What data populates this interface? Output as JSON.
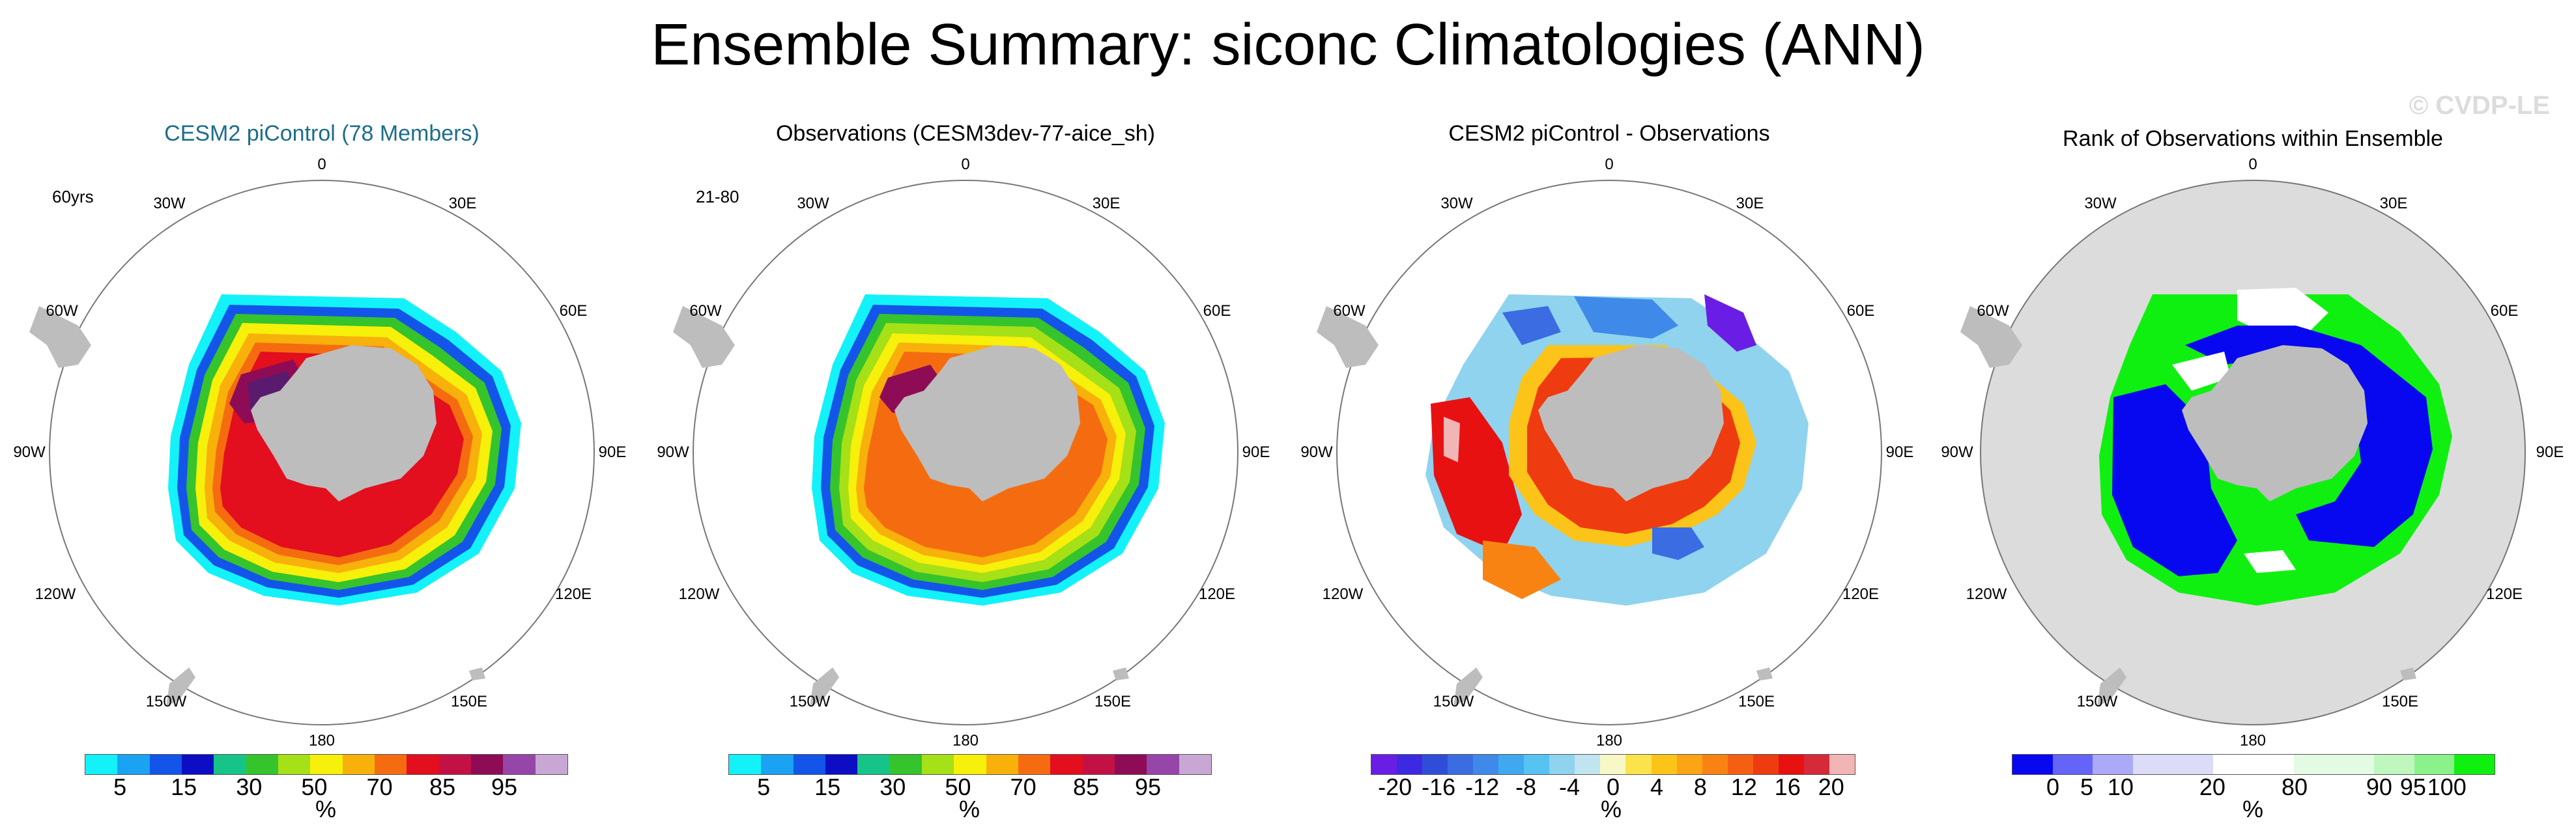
{
  "title": "Ensemble Summary: siconc Climatologies (ANN)",
  "watermark": "© CVDP-LE",
  "lon_labels": [
    "0",
    "30E",
    "60E",
    "90E",
    "120E",
    "150E",
    "180",
    "150W",
    "120W",
    "90W",
    "60W",
    "30W"
  ],
  "panels": [
    {
      "title": "CESM2 piControl (78 Members)",
      "corner": "60yrs",
      "unit": "%",
      "colors": [
        "#13f2f8",
        "#1aa3f2",
        "#1455e9",
        "#0d0dc4",
        "#16c48a",
        "#35c42c",
        "#a6e017",
        "#f7f00a",
        "#f8b00b",
        "#f56c10",
        "#e30e1e",
        "#c21245",
        "#8e0c55",
        "#9646a9",
        "#c8a7d4"
      ],
      "ticks": [
        "5",
        "15",
        "30",
        "50",
        "70",
        "85",
        "95"
      ]
    },
    {
      "title": "Observations (CESM3dev-77-aice_sh)",
      "corner": "21-80",
      "unit": "%",
      "colors": [
        "#13f2f8",
        "#1aa3f2",
        "#1455e9",
        "#0d0dc4",
        "#16c48a",
        "#35c42c",
        "#a6e017",
        "#f7f00a",
        "#f8b00b",
        "#f56c10",
        "#e30e1e",
        "#c21245",
        "#8e0c55",
        "#9646a9",
        "#c8a7d4"
      ],
      "ticks": [
        "5",
        "15",
        "30",
        "50",
        "70",
        "85",
        "95"
      ]
    },
    {
      "title": "CESM2 piControl - Observations",
      "corner": "",
      "unit": "%",
      "colors": [
        "#6a1de5",
        "#3c2ae2",
        "#2f4ed7",
        "#3b6ce2",
        "#3f8ae8",
        "#40a8ef",
        "#56c3f2",
        "#8fd3ef",
        "#c0e5f0",
        "#f8f8c7",
        "#fbe34e",
        "#fcc418",
        "#fba414",
        "#f98312",
        "#f55f12",
        "#ef3b10",
        "#e71112",
        "#d42a39",
        "#f2b5b5"
      ],
      "ticks": [
        "-20",
        "-16",
        "-12",
        "-8",
        "-4",
        "0",
        "4",
        "8",
        "12",
        "16",
        "20"
      ]
    },
    {
      "title": "Rank of Observations within Ensemble",
      "corner": "",
      "unit": "%",
      "colors": [
        "#0808f0",
        "#6464f8",
        "#aaaaf8",
        "#dcdcf8",
        "#dcdcf8",
        "#ffffff",
        "#ffffff",
        "#e2fbe2",
        "#e2fbe2",
        "#bff7bf",
        "#8bf28b",
        "#10f010"
      ],
      "ticks": [
        "0",
        "5",
        "10",
        "20",
        "80",
        "90",
        "95",
        "100"
      ]
    }
  ]
}
